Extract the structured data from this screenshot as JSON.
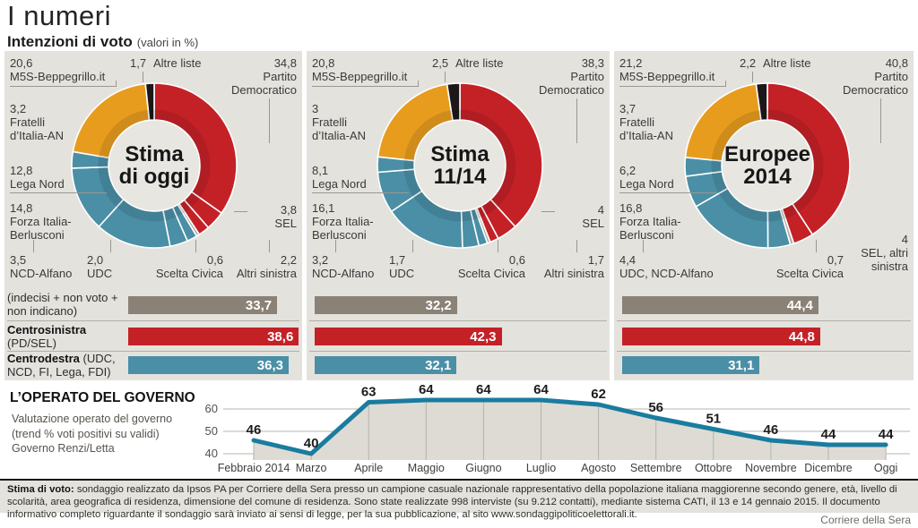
{
  "header": {
    "title": "I numeri",
    "subtitle": "Intenzioni di voto",
    "note": "(valori in %)"
  },
  "colors": {
    "red": "#c42127",
    "teal": "#4a8fa6",
    "orange": "#e89c1e",
    "black": "#1c181a",
    "gray_slice": "#b2aea8",
    "bar_gray": "#8a8177",
    "line": "#1a7c9e",
    "area_fill": "#dedbd5",
    "panel_bg": "#e4e2dd"
  },
  "chart_data": [
    {
      "type": "pie",
      "subtype": "donut",
      "title": "Stima di oggi",
      "center": [
        "Stima",
        "di oggi"
      ],
      "slices": [
        {
          "label": "Partito Democratico",
          "value": 34.8,
          "display": "34,8",
          "group": "left"
        },
        {
          "label": "SEL",
          "value": 3.8,
          "display": "3,8",
          "group": "left"
        },
        {
          "label": "Altri sinistra",
          "value": 2.2,
          "display": "2,2",
          "group": "left"
        },
        {
          "label": "Scelta Civica",
          "value": 0.6,
          "display": "0,6",
          "group": "neutral"
        },
        {
          "label": "UDC",
          "value": 2.0,
          "display": "2,0",
          "group": "right"
        },
        {
          "label": "NCD-Alfano",
          "value": 3.5,
          "display": "3,5",
          "group": "right"
        },
        {
          "label": "Forza Italia-Berlusconi",
          "value": 14.8,
          "display": "14,8",
          "group": "right"
        },
        {
          "label": "Lega Nord",
          "value": 12.8,
          "display": "12,8",
          "group": "right"
        },
        {
          "label": "Fratelli d’Italia-AN",
          "value": 3.2,
          "display": "3,2",
          "group": "right"
        },
        {
          "label": "M5S-Beppegrillo.it",
          "value": 20.6,
          "display": "20,6",
          "group": "m5s"
        },
        {
          "label": "Altre liste",
          "value": 1.7,
          "display": "1,7",
          "group": "other"
        }
      ],
      "bars": [
        {
          "label_rest": "(indecisi + non voto + non indicano)",
          "label_strong": "",
          "value": 33.7,
          "display": "33,7",
          "color": "bar_gray"
        },
        {
          "label_rest": "(PD/SEL)",
          "label_strong": "Centrosinistra",
          "value": 38.6,
          "display": "38,6",
          "color": "red"
        },
        {
          "label_rest": "(UDC, NCD, FI, Lega, FDI)",
          "label_strong": "Centrodestra",
          "value": 36.3,
          "display": "36,3",
          "color": "teal"
        }
      ]
    },
    {
      "type": "pie",
      "subtype": "donut",
      "title": "Stima 11/14",
      "center": [
        "Stima",
        "11/14"
      ],
      "slices": [
        {
          "label": "Partito Democratico",
          "value": 38.3,
          "display": "38,3",
          "group": "left"
        },
        {
          "label": "SEL",
          "value": 4.0,
          "display": "4",
          "group": "left"
        },
        {
          "label": "Altri sinistra",
          "value": 1.7,
          "display": "1,7",
          "group": "left"
        },
        {
          "label": "Scelta Civica",
          "value": 0.6,
          "display": "0,6",
          "group": "neutral"
        },
        {
          "label": "UDC",
          "value": 1.7,
          "display": "1,7",
          "group": "right"
        },
        {
          "label": "NCD-Alfano",
          "value": 3.2,
          "display": "3,2",
          "group": "right"
        },
        {
          "label": "Forza Italia-Berlusconi",
          "value": 16.1,
          "display": "16,1",
          "group": "right"
        },
        {
          "label": "Lega Nord",
          "value": 8.1,
          "display": "8,1",
          "group": "right"
        },
        {
          "label": "Fratelli d’Italia-AN",
          "value": 3.0,
          "display": "3",
          "group": "right"
        },
        {
          "label": "M5S-Beppegrillo.it",
          "value": 20.8,
          "display": "20,8",
          "group": "m5s"
        },
        {
          "label": "Altre liste",
          "value": 2.5,
          "display": "2,5",
          "group": "other"
        }
      ],
      "bars": [
        {
          "value": 32.2,
          "display": "32,2",
          "color": "bar_gray"
        },
        {
          "value": 42.3,
          "display": "42,3",
          "color": "red"
        },
        {
          "value": 32.1,
          "display": "32,1",
          "color": "teal"
        }
      ]
    },
    {
      "type": "pie",
      "subtype": "donut",
      "title": "Europee 2014",
      "center": [
        "Europee",
        "2014"
      ],
      "slices": [
        {
          "label": "Partito Democratico",
          "value": 40.8,
          "display": "40,8",
          "group": "left"
        },
        {
          "label": "SEL, altri sinistra",
          "value": 4.0,
          "display": "4",
          "group": "left"
        },
        {
          "label": "Scelta Civica",
          "value": 0.7,
          "display": "0,7",
          "group": "neutral"
        },
        {
          "label": "UDC, NCD-Alfano",
          "value": 4.4,
          "display": "4,4",
          "group": "right"
        },
        {
          "label": "Forza Italia-Berlusconi",
          "value": 16.8,
          "display": "16,8",
          "group": "right"
        },
        {
          "label": "Lega Nord",
          "value": 6.2,
          "display": "6,2",
          "group": "right"
        },
        {
          "label": "Fratelli d’Italia-AN",
          "value": 3.7,
          "display": "3,7",
          "group": "right"
        },
        {
          "label": "M5S-Beppegrillo.it",
          "value": 21.2,
          "display": "21,2",
          "group": "m5s"
        },
        {
          "label": "Altre liste",
          "value": 2.2,
          "display": "2,2",
          "group": "other"
        }
      ],
      "bars": [
        {
          "value": 44.4,
          "display": "44,4",
          "color": "bar_gray"
        },
        {
          "value": 44.8,
          "display": "44,8",
          "color": "red"
        },
        {
          "value": 31.1,
          "display": "31,1",
          "color": "teal"
        }
      ]
    },
    {
      "type": "line",
      "title": "L’OPERATO DEL GOVERNO",
      "subtitle": [
        "Valutazione operato del governo",
        "(trend % voti  positivi su validi)",
        "Governo Renzi/Letta"
      ],
      "x": [
        "Febbraio 2014",
        "Marzo",
        "Aprile",
        "Maggio",
        "Giugno",
        "Luglio",
        "Agosto",
        "Settembre",
        "Ottobre",
        "Novembre",
        "Dicembre",
        "Oggi"
      ],
      "values": [
        46,
        40,
        63,
        64,
        64,
        64,
        62,
        56,
        51,
        46,
        44,
        44
      ],
      "yticks": [
        60,
        50,
        40
      ],
      "ylim": [
        36,
        68
      ],
      "grid": true,
      "legend": "none"
    }
  ],
  "footer": {
    "lead": "Stima di voto:",
    "text": " sondaggio realizzato da Ipsos PA per Corriere della Sera presso un campione casuale nazionale rappresentativo della popolazione italiana maggiorenne secondo genere, età, livello di scolarità, area geografica di residenza, dimensione del comune di residenza. Sono state realizzate 998 interviste (su 9.212 contatti), mediante sistema CATI, il 13 e 14 gennaio 2015. Il documento informativo completo riguardante il sondaggio sarà inviato ai sensi di legge, per la sua pubblicazione, al sito www.sondaggipoliticoelettorali.it.",
    "credit": "Corriere della Sera"
  }
}
